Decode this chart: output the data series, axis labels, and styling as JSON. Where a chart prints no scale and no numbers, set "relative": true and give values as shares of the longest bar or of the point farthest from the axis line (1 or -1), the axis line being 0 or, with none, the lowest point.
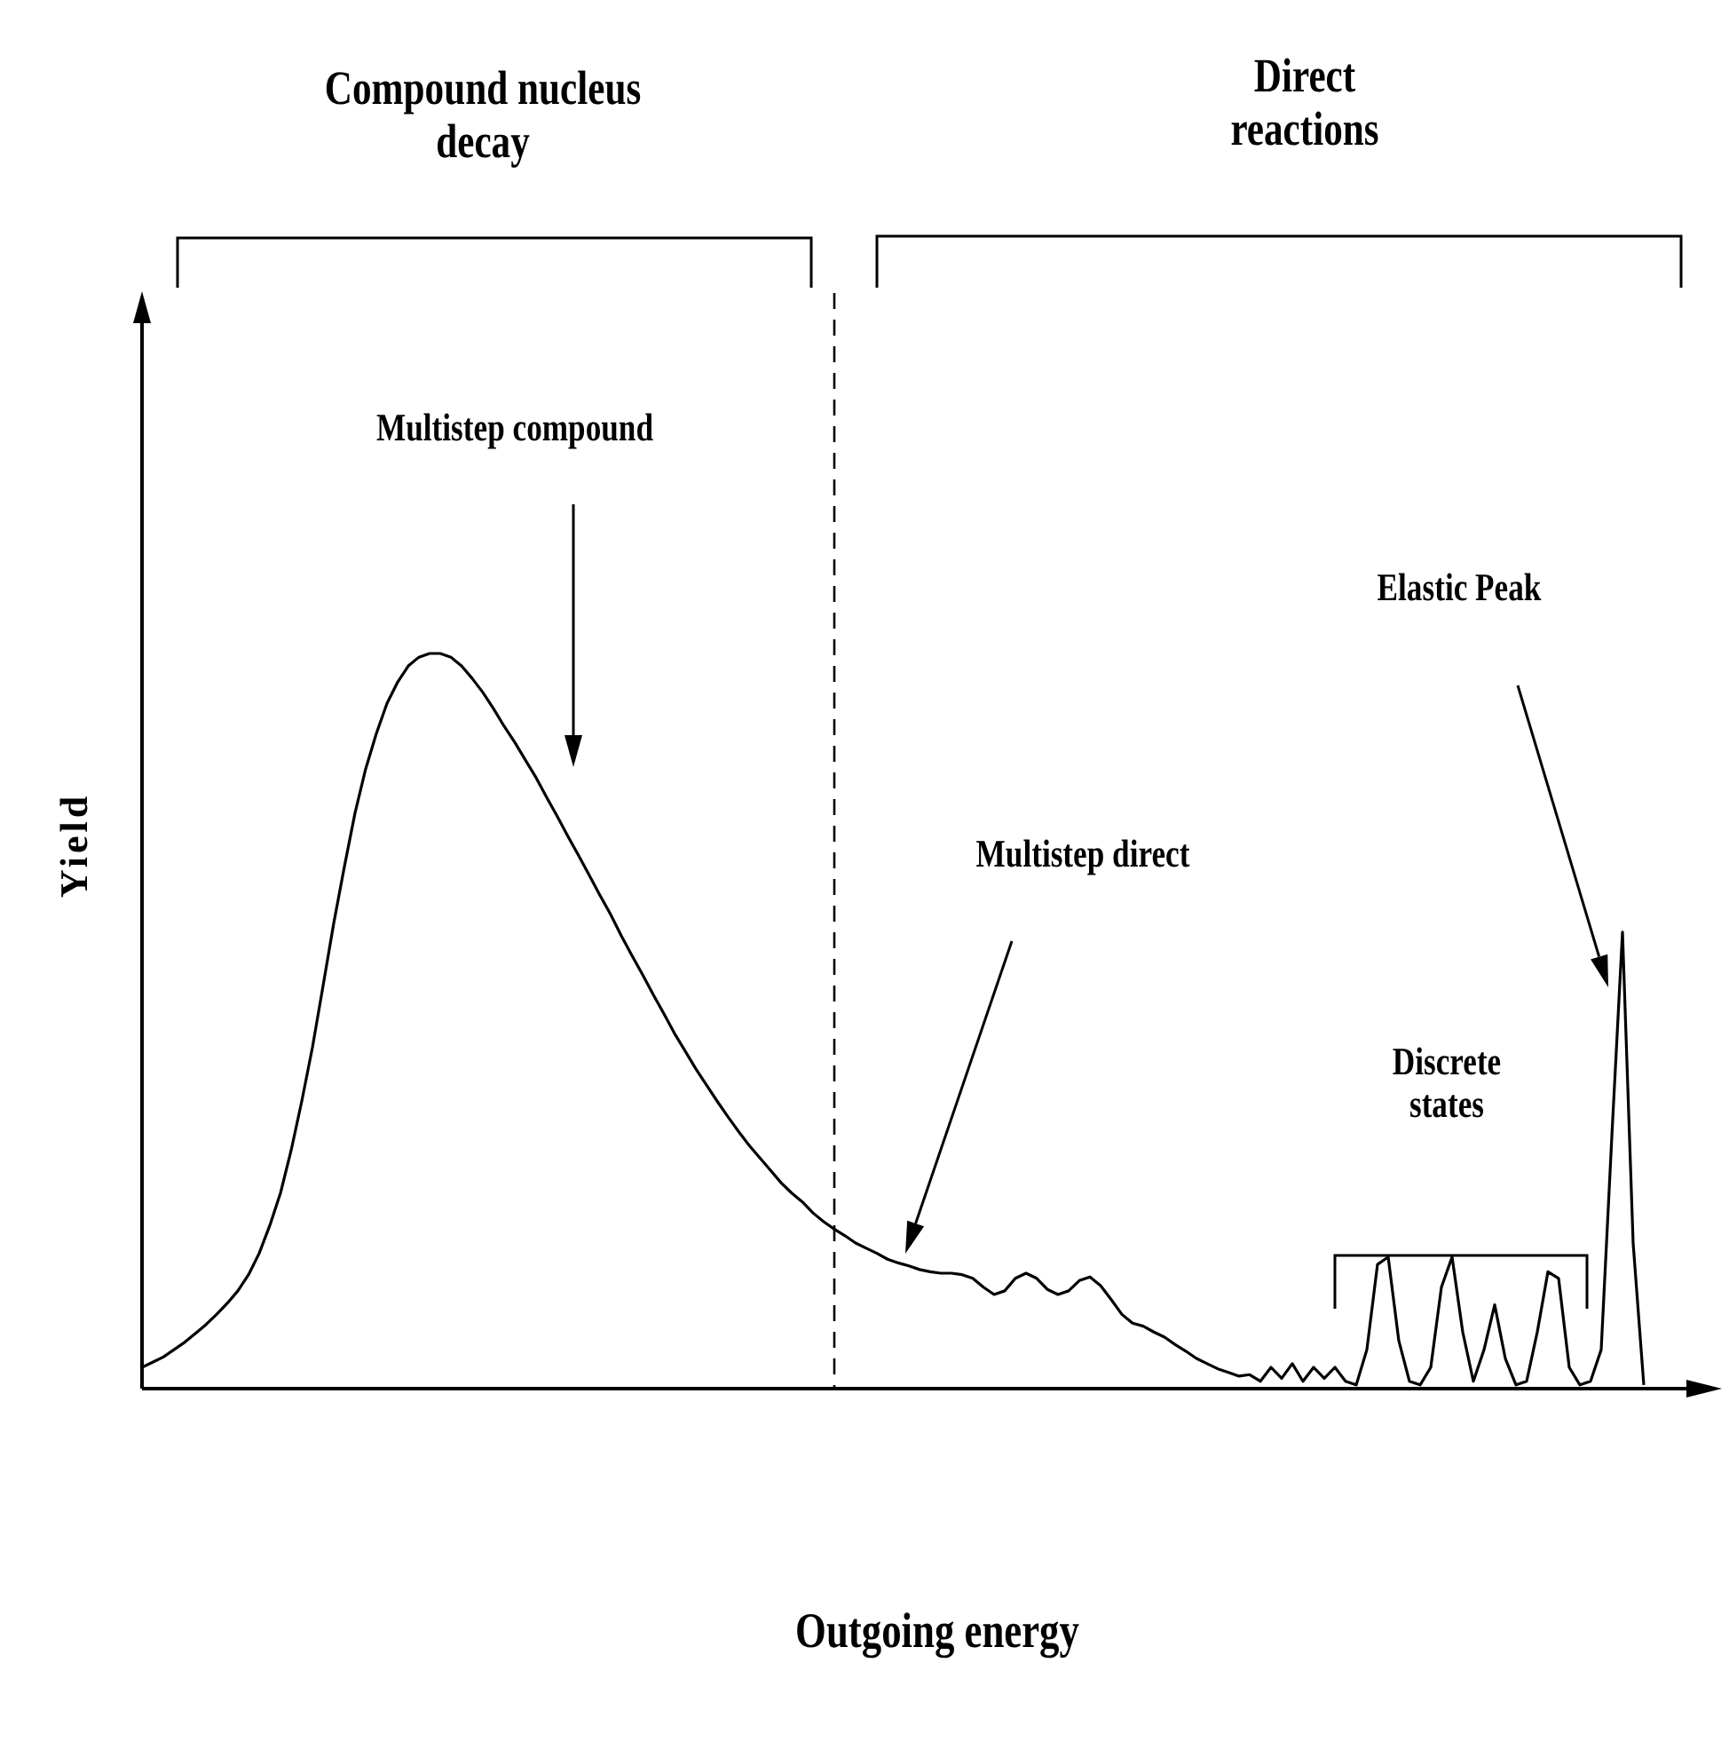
{
  "chart_data": {
    "type": "line",
    "relative": true,
    "xlabel": "Outgoing energy",
    "ylabel": "Yield",
    "marker": "none",
    "line_style": "solid",
    "legend": false,
    "annotations": [
      "Compound nucleus decay",
      "Direct reactions",
      "Multistep compound",
      "Multistep direct",
      "Discrete states",
      "Elastic Peak"
    ],
    "categories": [
      null,
      null,
      null,
      null,
      null,
      null,
      null,
      null,
      null,
      null,
      null,
      null,
      null,
      null,
      null,
      null,
      null,
      null,
      null,
      null,
      null,
      null,
      null,
      null,
      null,
      null,
      null,
      null,
      null,
      null,
      null,
      null,
      null,
      null,
      null,
      null,
      null,
      null,
      null,
      null,
      null,
      null,
      null,
      null,
      null,
      null,
      null,
      null,
      null,
      null,
      null,
      null,
      null,
      null,
      null,
      null,
      null,
      null,
      null,
      null,
      null,
      null,
      null,
      null,
      null,
      null,
      null,
      null,
      null,
      null,
      null,
      null,
      null,
      null,
      null,
      null,
      null,
      null,
      null,
      null,
      null,
      null,
      null,
      null,
      null,
      null,
      null,
      null,
      null,
      null,
      null,
      null,
      null,
      null,
      null,
      null,
      null,
      null,
      null,
      null,
      null,
      null,
      null,
      null,
      null,
      null,
      null,
      null,
      null,
      null,
      null,
      null,
      null,
      null,
      null,
      null,
      null,
      null,
      null,
      null,
      null,
      null,
      null,
      null,
      null,
      null,
      null,
      null,
      null,
      null,
      null,
      null,
      null,
      null,
      null,
      null,
      null,
      null,
      null,
      null,
      null,
      null
    ],
    "series": [
      {
        "color": "#000000",
        "values": [
          0.029,
          0.036,
          0.043,
          0.053,
          0.063,
          0.075,
          0.087,
          0.101,
          0.116,
          0.133,
          0.155,
          0.184,
          0.222,
          0.266,
          0.324,
          0.391,
          0.464,
          0.548,
          0.633,
          0.71,
          0.783,
          0.843,
          0.891,
          0.932,
          0.961,
          0.983,
          0.995,
          1,
          1,
          0.995,
          0.983,
          0.966,
          0.947,
          0.925,
          0.901,
          0.879,
          0.855,
          0.831,
          0.804,
          0.778,
          0.751,
          0.725,
          0.698,
          0.671,
          0.645,
          0.616,
          0.589,
          0.563,
          0.536,
          0.51,
          0.483,
          0.459,
          0.435,
          0.413,
          0.391,
          0.37,
          0.35,
          0.331,
          0.314,
          0.297,
          0.28,
          0.266,
          0.254,
          0.239,
          0.227,
          0.217,
          0.208,
          0.198,
          0.191,
          0.184,
          0.176,
          0.171,
          0.167,
          0.162,
          0.159,
          0.157,
          0.157,
          0.155,
          0.15,
          0.138,
          0.128,
          0.133,
          0.15,
          0.157,
          0.15,
          0.135,
          0.128,
          0.133,
          0.147,
          0.152,
          0.14,
          0.121,
          0.101,
          0.089,
          0.085,
          0.077,
          0.07,
          0.06,
          0.051,
          0.041,
          0.034,
          0.027,
          0.022,
          0.017,
          0.019,
          0.01,
          0.029,
          0.014,
          0.034,
          0.01,
          0.029,
          0.014,
          0.029,
          0.01,
          0.005,
          0.053,
          0.169,
          0.179,
          0.065,
          0.01,
          0.005,
          0.029,
          0.138,
          0.179,
          0.077,
          0.01,
          0.053,
          0.114,
          0.041,
          0.005,
          0.01,
          0.077,
          0.159,
          0.15,
          0.029,
          0.005,
          0.01,
          0.053,
          0.343,
          0.621,
          0.198,
          0.005
        ]
      }
    ]
  }
}
